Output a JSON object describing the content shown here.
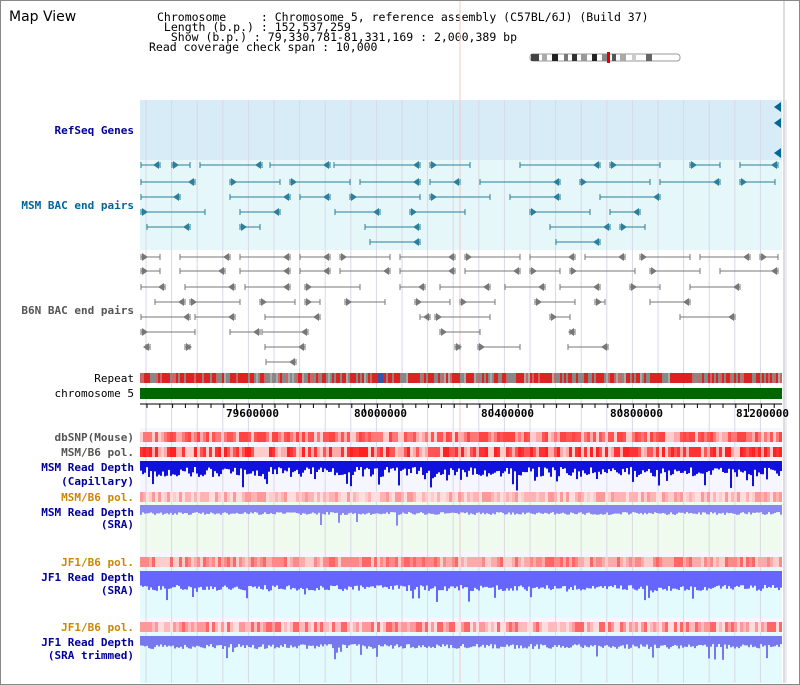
{
  "header": {
    "title": "Map View",
    "chromosome_line": "Chromosome     : Chromosome 5, reference assembly (C57BL/6J) (Build 37)",
    "length_line": " Length (b.p.) : 152,537,259",
    "show_line": "  Show (b.p.) : 79,330,781-81,331,169 : 2,000,389 bp",
    "coverage_line": "Read coverage check span : 10,000"
  },
  "tracks": {
    "refseq": "RefSeq Genes",
    "msm_bac": "MSM BAC end pairs",
    "b6n_bac": "B6N BAC end pairs",
    "repeat": "Repeat",
    "chromosome": "chromosome 5",
    "dbsnp": "dbSNP(Mouse)",
    "msm_b6_pol_1": "MSM/B6 pol.",
    "msm_depth_cap_1": "MSM Read Depth",
    "msm_depth_cap_2": "(Capillary)",
    "msm_b6_pol_2": "MSM/B6 pol.",
    "msm_depth_sra_1": "MSM Read Depth",
    "msm_depth_sra_2": "(SRA)",
    "jf1_b6_pol_1": "JF1/B6 pol.",
    "jf1_depth_sra_1": "JF1 Read Depth",
    "jf1_depth_sra_2": "(SRA)",
    "jf1_b6_pol_2": "JF1/B6 pol.",
    "jf1_depth_trim_1": "JF1 Read Depth",
    "jf1_depth_trim_2": "(SRA trimmed)"
  },
  "axis": {
    "ticks": [
      "79600000",
      "80000000",
      "80400000",
      "80800000",
      "81200000"
    ]
  },
  "colors": {
    "navy_label": "#000099",
    "teal_label": "#006699",
    "orange_label": "#cc8800",
    "gray_label": "#555555",
    "chromosome_bar": "#006600",
    "depth_dark": "#1111dd",
    "depth_light": "#6666ff",
    "snp_red": "#ff3333"
  }
}
